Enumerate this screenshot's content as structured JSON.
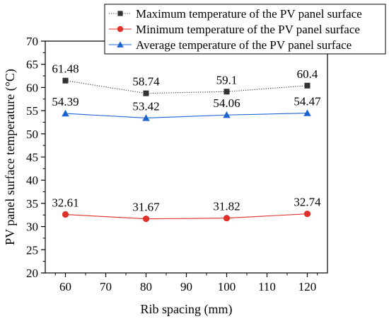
{
  "chart_data": {
    "type": "line",
    "title": "",
    "xlabel": "Rib spacing (mm)",
    "ylabel": "PV panel surface temperature (°C)",
    "x": [
      60,
      80,
      100,
      120
    ],
    "xlim": [
      55,
      125
    ],
    "ylim": [
      20,
      70
    ],
    "xticks": [
      "60",
      "70",
      "80",
      "90",
      "100",
      "110",
      "120"
    ],
    "yticks": [
      "20",
      "25",
      "30",
      "35",
      "40",
      "45",
      "50",
      "55",
      "60",
      "65",
      "70"
    ],
    "grid": false,
    "legend_position": "top-right",
    "series": [
      {
        "name": "Maximum temperature of the PV panel surface",
        "values": [
          61.48,
          58.74,
          59.1,
          60.4
        ],
        "labels": [
          "61.48",
          "58.74",
          "59.1",
          "60.4"
        ],
        "color": "#333333",
        "marker": "square",
        "line_style": "dotted"
      },
      {
        "name": "Minimum temperature of the PV panel surface",
        "values": [
          32.61,
          31.67,
          31.82,
          32.74
        ],
        "labels": [
          "32.61",
          "31.67",
          "31.82",
          "32.74"
        ],
        "color": "#e0302a",
        "marker": "circle",
        "line_style": "solid"
      },
      {
        "name": "Average temperature of the PV panel surface",
        "values": [
          54.39,
          53.42,
          54.06,
          54.47
        ],
        "labels": [
          "54.39",
          "53.42",
          "54.06",
          "54.47"
        ],
        "color": "#1c63d2",
        "marker": "triangle",
        "line_style": "solid"
      }
    ]
  }
}
